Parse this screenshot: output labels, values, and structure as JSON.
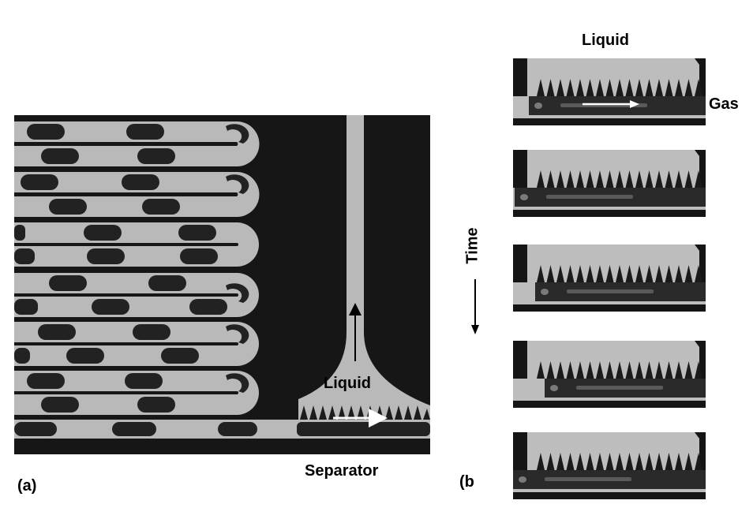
{
  "panel_a": {
    "label": "(a)",
    "annotations": {
      "liquid": "Liquid",
      "separator": "Separator"
    }
  },
  "panel_b": {
    "label": "(b",
    "annotations": {
      "liquid": "Liquid",
      "gas": "Gas",
      "time": "Time"
    },
    "frame_count": 5
  },
  "colors": {
    "channel_fill": "#b8b8b8",
    "background": "#141414",
    "gas_bubble": "#222222",
    "arrow_white": "#ffffff",
    "arrow_black": "#000000"
  }
}
